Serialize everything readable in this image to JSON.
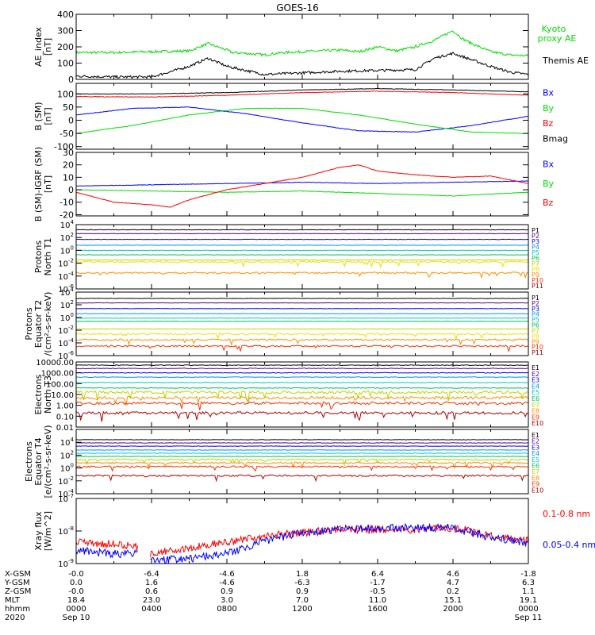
{
  "title": "GOES-16",
  "colors": {
    "black": "#000000",
    "red": "#ff0000",
    "green": "#00dd00",
    "blue": "#0000ff",
    "P1": "#000000",
    "P2": "#5a0090",
    "P3": "#0000ff",
    "P4": "#0090ff",
    "P5": "#00c8c8",
    "P6": "#00c060",
    "P7": "#b8d800",
    "P8": "#f0e000",
    "P9": "#ff9000",
    "P10": "#ff3000",
    "P11": "#b00000",
    "E1": "#000000",
    "E2": "#5a0090",
    "E3": "#0000ff",
    "E4": "#0090ff",
    "E5": "#00c8c8",
    "E6": "#00c060",
    "E7": "#b8d800",
    "E8": "#ff9000",
    "E9": "#ff3000",
    "E10": "#b00000"
  },
  "chart_data": [
    {
      "type": "line",
      "id": "ae",
      "ylabel_lines": [
        "AE_index",
        "[nT]"
      ],
      "ylim": [
        0,
        400
      ],
      "yticks": [
        "0",
        "100",
        "200",
        "300",
        "400"
      ],
      "legend": [
        "Kyoto proxy AE",
        "Themis AE"
      ],
      "legend_lines": [
        [
          "Kyoto",
          "proxy AE"
        ],
        [
          "Themis AE"
        ]
      ],
      "series": [
        {
          "name": "Kyoto proxy AE",
          "color": "green",
          "x": [
            0,
            2,
            4,
            6,
            7,
            8,
            8.3,
            9,
            10,
            11,
            12,
            13,
            14,
            15,
            16,
            17,
            18,
            19,
            20,
            20.5,
            21,
            22,
            23,
            24
          ],
          "y": [
            165,
            165,
            170,
            175,
            220,
            180,
            165,
            160,
            150,
            165,
            170,
            175,
            180,
            170,
            200,
            175,
            200,
            240,
            300,
            250,
            220,
            170,
            150,
            145
          ]
        },
        {
          "name": "Themis AE",
          "color": "black",
          "x": [
            0,
            2,
            4,
            6,
            7,
            8,
            10,
            12,
            14,
            16,
            18,
            19,
            20,
            21,
            22,
            23,
            24
          ],
          "y": [
            20,
            15,
            15,
            80,
            130,
            80,
            30,
            40,
            50,
            55,
            60,
            130,
            160,
            120,
            80,
            45,
            30
          ]
        }
      ]
    },
    {
      "type": "line",
      "id": "bsm",
      "ylabel_lines": [
        "B (SM)",
        "[nT]"
      ],
      "ylim": [
        -110,
        140
      ],
      "yticks": [
        "-100",
        "-50",
        "0",
        "50",
        "100"
      ],
      "legend": [
        "Bx",
        "By",
        "Bz",
        "Bmag"
      ],
      "series": [
        {
          "name": "Bx",
          "color": "blue",
          "x": [
            0,
            3,
            6,
            9,
            12,
            15,
            18,
            21,
            24
          ],
          "y": [
            20,
            45,
            50,
            25,
            -10,
            -40,
            -45,
            -20,
            15
          ]
        },
        {
          "name": "By",
          "color": "green",
          "x": [
            0,
            3,
            6,
            9,
            12,
            15,
            18,
            21,
            24
          ],
          "y": [
            -50,
            -20,
            20,
            45,
            45,
            20,
            -15,
            -45,
            -50
          ]
        },
        {
          "name": "Bz",
          "color": "red",
          "x": [
            0,
            4,
            8,
            12,
            16,
            20,
            24
          ],
          "y": [
            90,
            88,
            95,
            105,
            110,
            105,
            95
          ]
        },
        {
          "name": "Bmag",
          "color": "black",
          "x": [
            0,
            4,
            8,
            12,
            16,
            20,
            24
          ],
          "y": [
            100,
            100,
            105,
            115,
            120,
            115,
            108
          ]
        }
      ]
    },
    {
      "type": "line",
      "id": "bdiff",
      "ylabel_lines": [
        "B (SM)-IGRF (SM)",
        "[nT]"
      ],
      "ylim": [
        -21,
        30
      ],
      "yticks": [
        "-20",
        "-10",
        "0",
        "10",
        "20",
        "30"
      ],
      "legend": [
        "Bx",
        "By",
        "Bz"
      ],
      "series": [
        {
          "name": "Bx",
          "color": "blue",
          "x": [
            0,
            4,
            8,
            12,
            16,
            20,
            24
          ],
          "y": [
            3,
            4,
            5,
            6,
            5,
            6,
            7
          ]
        },
        {
          "name": "By",
          "color": "green",
          "x": [
            0,
            4,
            8,
            12,
            16,
            20,
            24
          ],
          "y": [
            0,
            -1,
            -2,
            -1,
            -3,
            -5,
            -2
          ]
        },
        {
          "name": "Bz",
          "color": "red",
          "x": [
            0,
            2,
            4,
            5,
            6,
            8,
            10,
            12,
            14,
            15,
            16,
            18,
            20,
            22,
            23,
            24
          ],
          "y": [
            -2,
            -10,
            -12,
            -14,
            -8,
            0,
            5,
            10,
            18,
            20,
            15,
            12,
            10,
            11,
            8,
            5
          ]
        }
      ]
    },
    {
      "type": "line",
      "id": "protons1",
      "yscale": "log",
      "ylabel_lines": [
        "Protons",
        "North T1"
      ],
      "ylim_log": [
        -6,
        4
      ],
      "ytick_exps": [
        4,
        2,
        0,
        -2,
        -4,
        -6
      ],
      "legend": [
        "P1",
        "P2",
        "P3",
        "P4",
        "P5",
        "P6",
        "P7",
        "P8",
        "P9",
        "P10",
        "P11"
      ],
      "levels_log": [
        3.2,
        2.6,
        1.7,
        0.8,
        0.0,
        -0.7,
        -1.5,
        -1.8,
        -3.5,
        -9,
        -9
      ]
    },
    {
      "type": "line",
      "id": "protons2",
      "yscale": "log",
      "ylabel_lines": [
        "Protons",
        "Equator T2",
        "/(cm²-s-sr-keV)"
      ],
      "ylim_log": [
        -6,
        4
      ],
      "ytick_exps": [
        4,
        2,
        0,
        -2,
        -4,
        -6
      ],
      "legend": [
        "P1",
        "P2",
        "P3",
        "P4",
        "P5",
        "P6",
        "P7",
        "P8",
        "P9",
        "P10",
        "P11"
      ],
      "levels_log": [
        3.0,
        2.3,
        1.4,
        0.6,
        -0.1,
        -0.6,
        -1.8,
        -2.6,
        -3.5,
        -4.5,
        -9
      ]
    },
    {
      "type": "line",
      "id": "electrons1",
      "yscale": "log",
      "ylabel_lines": [
        "Electrons",
        "North T3"
      ],
      "ylim_log": [
        -2,
        4
      ],
      "ytick_labels": [
        "10000.00",
        "1000.00",
        "100.00",
        "10.00",
        "1.00",
        "0.10",
        "0.01"
      ],
      "legend": [
        "E1",
        "E2",
        "E3",
        "E4",
        "E5",
        "E6",
        "E7",
        "E8",
        "E9",
        "E10"
      ],
      "levels_log": [
        3.7,
        3.4,
        3.0,
        2.6,
        2.1,
        1.6,
        1.2,
        0.7,
        0.2,
        -0.7
      ]
    },
    {
      "type": "line",
      "id": "electrons2",
      "yscale": "log",
      "ylabel_lines": [
        "Electrons",
        "Equator T4",
        "[e/(cm²-s-sr-keV)"
      ],
      "ylim_log": [
        -4,
        6
      ],
      "ytick_exps": [
        4,
        2,
        0,
        -2,
        -4
      ],
      "legend": [
        "E1",
        "E2",
        "E3",
        "E4",
        "E5",
        "E6",
        "E7",
        "E8",
        "E9",
        "E10"
      ],
      "levels_log": [
        4.4,
        3.9,
        3.4,
        2.8,
        2.3,
        1.8,
        1.3,
        0.8,
        0.2,
        -1.2
      ]
    },
    {
      "type": "line",
      "id": "xray",
      "yscale": "log",
      "ylabel_lines": [
        "Xray flux",
        "[W/m^2]"
      ],
      "ylim_log": [
        -9,
        -7
      ],
      "ytick_exps": [
        -7,
        -8,
        -9
      ],
      "legend": [
        "0.1-0.8 nm",
        "0.05-0.4 nm"
      ],
      "gap": [
        3.3,
        3.9
      ],
      "series": [
        {
          "name": "0.1-0.8 nm",
          "color": "red",
          "x": [
            0,
            2,
            3.3,
            3.9,
            6,
            8,
            10,
            12,
            14,
            16,
            18,
            20,
            22,
            24
          ],
          "y": [
            -8.35,
            -8.4,
            -8.5,
            -8.7,
            -8.5,
            -8.35,
            -8.15,
            -8.05,
            -7.95,
            -7.95,
            -7.95,
            -7.9,
            -8.15,
            -8.3
          ]
        },
        {
          "name": "0.05-0.4 nm",
          "color": "blue",
          "x": [
            0,
            2,
            3.3,
            3.9,
            6,
            8,
            10,
            12,
            14,
            16,
            18,
            20,
            22,
            24
          ],
          "y": [
            -8.6,
            -8.7,
            -8.7,
            -8.9,
            -8.85,
            -8.7,
            -8.3,
            -8.05,
            -7.95,
            -7.9,
            -7.9,
            -7.9,
            -8.2,
            -8.35
          ]
        }
      ]
    }
  ],
  "x_axis": {
    "range": [
      0,
      24
    ],
    "rows": [
      {
        "label": "X-GSM",
        "values": [
          "-0.0",
          "-6.4",
          "-4.6",
          "1.8",
          "6.4",
          "4.6",
          "-1.8"
        ]
      },
      {
        "label": "Y-GSM",
        "values": [
          "0.0",
          "1.6",
          "-4.6",
          "-6.3",
          "-1.7",
          "4.7",
          "6.3"
        ]
      },
      {
        "label": "Z-GSM",
        "values": [
          "-0.0",
          "0.6",
          "0.9",
          "0.9",
          "-0.5",
          "0.2",
          "1.1"
        ]
      },
      {
        "label": "MLT",
        "values": [
          "18.4",
          "23.0",
          "3.0",
          "7.0",
          "11.0",
          "15.1",
          "19.1"
        ]
      },
      {
        "label": "hhmm",
        "values": [
          "0000",
          "0400",
          "0800",
          "1200",
          "1600",
          "2000",
          "0000"
        ]
      },
      {
        "label": "2020",
        "values": [
          "Sep 10",
          "",
          "",
          "",
          "",
          "",
          "Sep 11"
        ]
      }
    ]
  }
}
